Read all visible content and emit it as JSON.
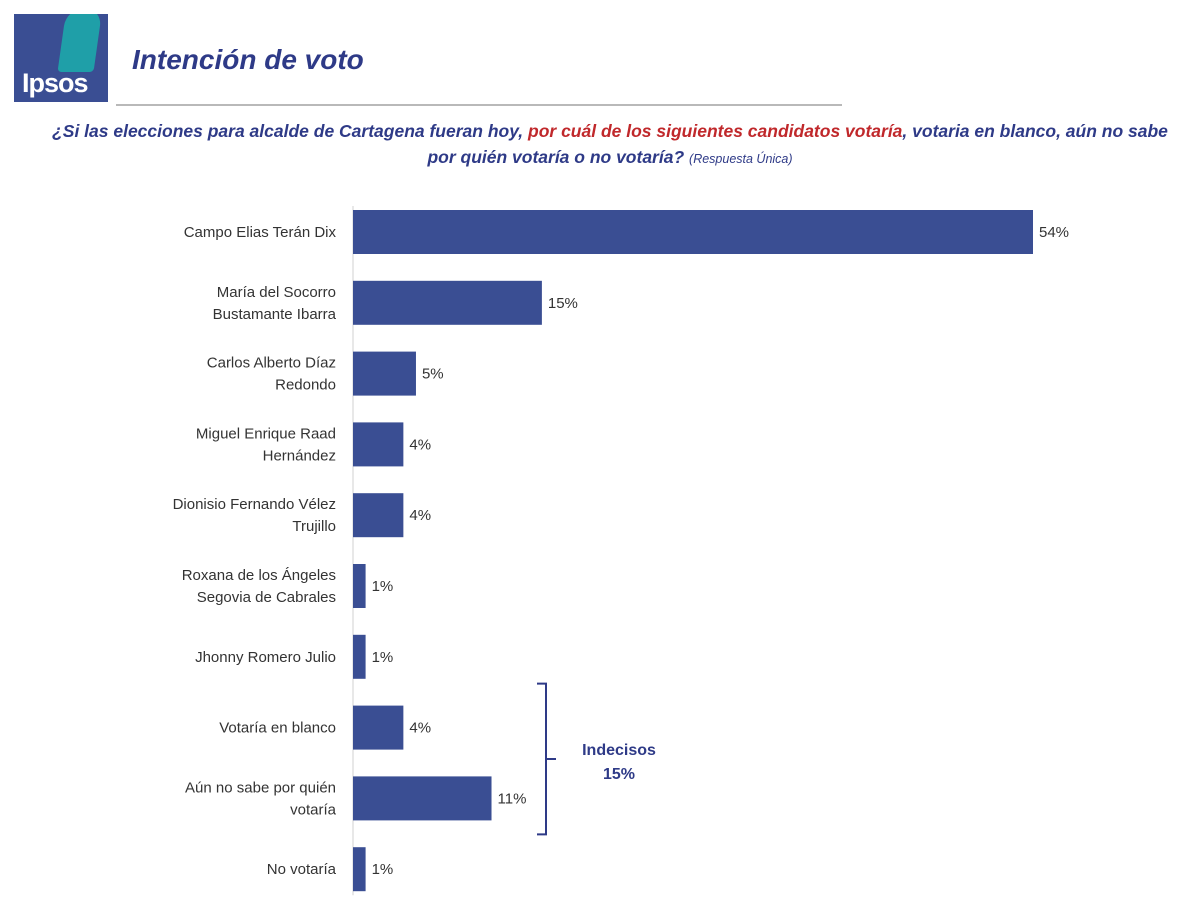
{
  "header": {
    "logo_text": "Ipsos",
    "title": "Intención de voto",
    "question_part1": "¿Si las elecciones para alcalde de Cartagena fueran hoy, ",
    "question_highlight": "por cuál de los siguientes candidatos votaría",
    "question_part2": ", votaria en blanco, aún no sabe por quién votaría o no votaría?",
    "question_note": "(Respuesta Única)"
  },
  "colors": {
    "bar": "#3a4e93",
    "title": "#2e3a87",
    "highlight": "#c0282b"
  },
  "chart_data": {
    "type": "bar",
    "orientation": "horizontal",
    "categories": [
      [
        "Campo Elias Terán Dix"
      ],
      [
        "María del Socorro",
        "Bustamante Ibarra"
      ],
      [
        "Carlos Alberto Díaz",
        "Redondo"
      ],
      [
        "Miguel Enrique Raad",
        "Hernández"
      ],
      [
        "Dionisio Fernando Vélez",
        "Trujillo"
      ],
      [
        "Roxana de los Ángeles",
        "Segovia de Cabrales"
      ],
      [
        "Jhonny Romero Julio"
      ],
      [
        "Votaría en blanco"
      ],
      [
        "Aún no sabe por quién",
        "votaría"
      ],
      [
        "No votaría"
      ]
    ],
    "values": [
      54,
      15,
      5,
      4,
      4,
      1,
      1,
      4,
      11,
      1
    ],
    "value_labels": [
      "54%",
      "15%",
      "5%",
      "4%",
      "4%",
      "1%",
      "1%",
      "4%",
      "11%",
      "1%"
    ],
    "xlim": [
      0,
      54
    ],
    "grid": false,
    "legend": "none",
    "annotation": {
      "label_line1": "Indecisos",
      "label_line2": "15%",
      "covers_categories": [
        7,
        8
      ]
    }
  }
}
